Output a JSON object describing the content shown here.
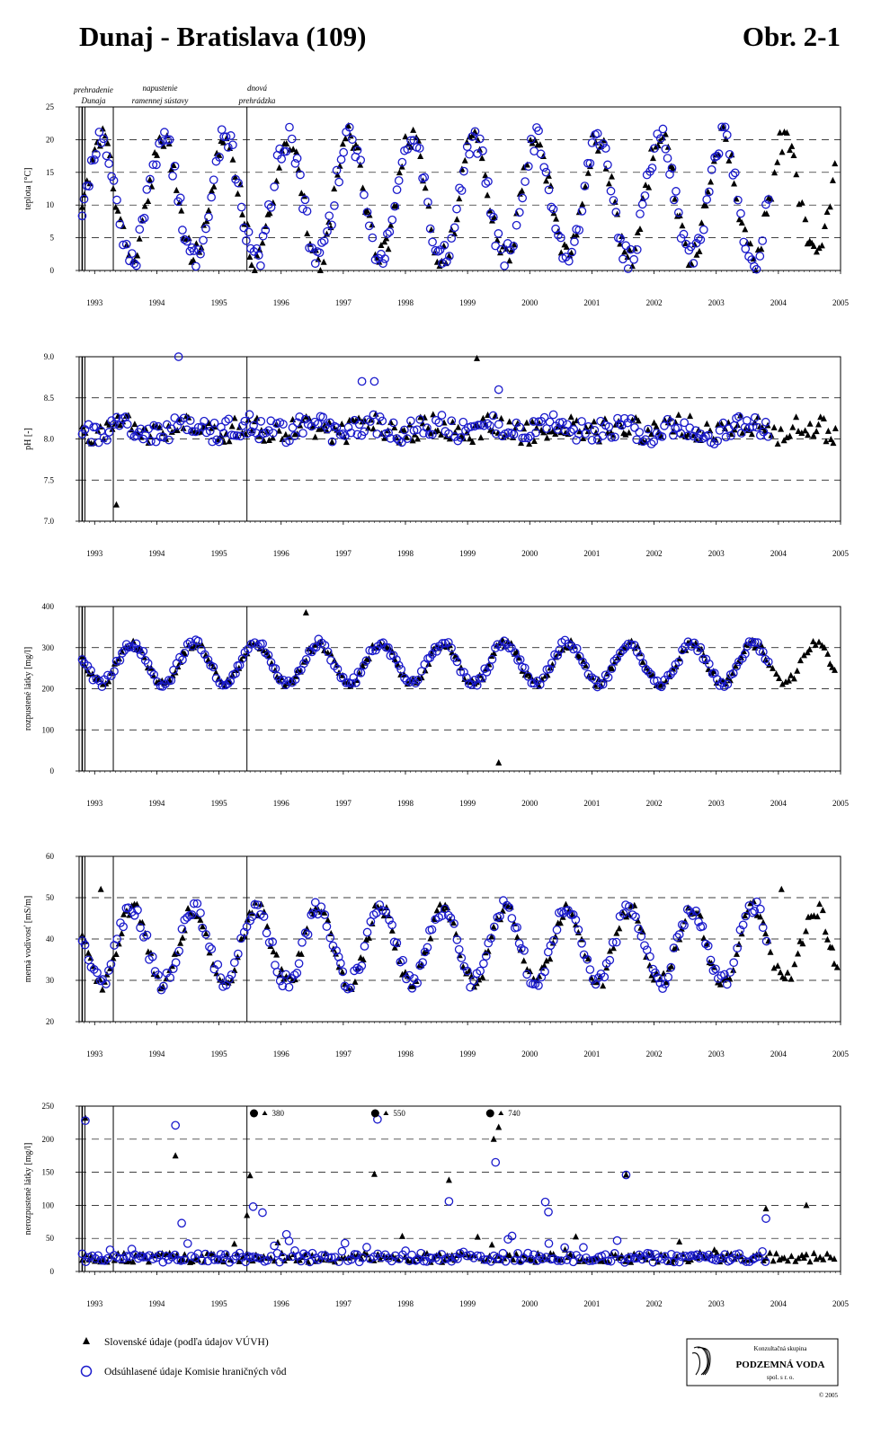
{
  "header": {
    "title": "Dunaj - Bratislava (109)",
    "figure_no": "Obr. 2-1"
  },
  "annotations": [
    {
      "line1": "prehradenie",
      "line2": "Dunaja"
    },
    {
      "line1": "napustenie",
      "line2": "ramennej sústavy"
    },
    {
      "line1": "dnová",
      "line2": "prehrádzka"
    }
  ],
  "legend": {
    "slovak": "Slovenské údaje (podľa údajov VÚVH)",
    "agreed": "Odsúhlasené údaje Komisie hraničných vôd"
  },
  "logo": {
    "line1": "Konzultačná skupina",
    "line2": "PODZEMNÁ VODA",
    "line3": "spol. s r. o.",
    "copyright": "© 2005"
  },
  "colors": {
    "slovak": "#000000",
    "agreed": "#1a1acc"
  },
  "chart_data": [
    {
      "type": "scatter",
      "ylabel": "teplota [°C]",
      "ylim": [
        0,
        25
      ],
      "yticks": [
        "0",
        "5",
        "10",
        "15",
        "20",
        "25"
      ],
      "xlim": [
        1992.75,
        2005.0
      ],
      "xticks": [
        "1993",
        "1994",
        "1995",
        "1996",
        "1997",
        "1998",
        "1999",
        "2000",
        "2001",
        "2002",
        "2003",
        "2004",
        "2005"
      ],
      "grid": "dashed horizontal",
      "event_lines": [
        1992.8,
        1993.3,
        1995.45
      ],
      "model": "seasonal",
      "mean": 11.0,
      "amp": 9.2,
      "phase": 0.6,
      "series": [
        {
          "name": "Slovenské údaje (podľa údajov VÚVH)",
          "marker": "triangle",
          "range": [
            1992.8,
            2004.95
          ],
          "step": 0.042
        },
        {
          "name": "Odsúhlasené údaje Komisie hraničných vôd",
          "marker": "circle",
          "range": [
            1992.8,
            2003.85
          ],
          "step": 0.042
        }
      ]
    },
    {
      "type": "scatter",
      "ylabel": "pH [-]",
      "ylim": [
        7.0,
        9.0
      ],
      "yticks": [
        "7.0",
        "7.5",
        "8.0",
        "8.5",
        "9.0"
      ],
      "xlim": [
        1992.75,
        2005.0
      ],
      "xticks": [
        "1993",
        "1994",
        "1995",
        "1996",
        "1997",
        "1998",
        "1999",
        "2000",
        "2001",
        "2002",
        "2003",
        "2004",
        "2005"
      ],
      "grid": "dashed horizontal",
      "event_lines": [
        1992.8,
        1993.3,
        1995.45
      ],
      "model": "flat",
      "mean": 8.12,
      "amp": 0.14,
      "phase": 0.2,
      "series": [
        {
          "name": "Slovenské údaje (podľa údajov VÚVH)",
          "marker": "triangle",
          "range": [
            1992.8,
            2004.95
          ],
          "step": 0.045
        },
        {
          "name": "Odsúhlasené údaje Komisie hraničných vôd",
          "marker": "circle",
          "range": [
            1992.8,
            2003.85
          ],
          "step": 0.045
        }
      ],
      "outliers": [
        {
          "series": 1,
          "x": 1994.35,
          "y": 9.0
        },
        {
          "series": 0,
          "x": 1999.15,
          "y": 8.98
        },
        {
          "series": 0,
          "x": 1993.35,
          "y": 7.2
        },
        {
          "series": 1,
          "x": 1997.3,
          "y": 8.7
        },
        {
          "series": 1,
          "x": 1997.5,
          "y": 8.7
        },
        {
          "series": 1,
          "x": 1999.5,
          "y": 8.6
        }
      ]
    },
    {
      "type": "scatter",
      "ylabel": "rozpustené látky [mg/l]",
      "ylim": [
        0,
        400
      ],
      "yticks": [
        "0",
        "100",
        "200",
        "300",
        "400"
      ],
      "xlim": [
        1992.75,
        2005.0
      ],
      "xticks": [
        "1993",
        "1994",
        "1995",
        "1996",
        "1997",
        "1998",
        "1999",
        "2000",
        "2001",
        "2002",
        "2003",
        "2004",
        "2005"
      ],
      "grid": "dashed horizontal",
      "event_lines": [
        1992.8,
        1993.3,
        1995.45
      ],
      "model": "seasonal",
      "mean": 262,
      "amp": 48,
      "phase": 0.1,
      "series": [
        {
          "name": "Slovenské údaje (podľa údajov VÚVH)",
          "marker": "triangle",
          "range": [
            1992.8,
            2004.95
          ],
          "step": 0.045
        },
        {
          "name": "Odsúhlasené údaje Komisie hraničných vôd",
          "marker": "circle",
          "range": [
            1992.8,
            2003.85
          ],
          "step": 0.045
        }
      ],
      "outliers": [
        {
          "series": 0,
          "x": 1996.4,
          "y": 385
        },
        {
          "series": 0,
          "x": 1999.5,
          "y": 20
        }
      ]
    },
    {
      "type": "scatter",
      "ylabel": "merná vodivosť [mS/m]",
      "ylim": [
        20,
        60
      ],
      "yticks": [
        "20",
        "30",
        "40",
        "50",
        "60"
      ],
      "xlim": [
        1992.75,
        2005.0
      ],
      "xticks": [
        "1993",
        "1994",
        "1995",
        "1996",
        "1997",
        "1998",
        "1999",
        "2000",
        "2001",
        "2002",
        "2003",
        "2004",
        "2005"
      ],
      "grid": "dashed horizontal",
      "event_lines": [
        1992.8,
        1993.3,
        1995.45
      ],
      "model": "seasonal",
      "mean": 38.5,
      "amp": 9.0,
      "phase": 0.1,
      "series": [
        {
          "name": "Slovenské údaje (podľa údajov VÚVH)",
          "marker": "triangle",
          "range": [
            1992.8,
            2004.95
          ],
          "step": 0.045
        },
        {
          "name": "Odsúhlasené údaje Komisie hraničných vôd",
          "marker": "circle",
          "range": [
            1992.8,
            2003.85
          ],
          "step": 0.045
        }
      ],
      "outliers": [
        {
          "series": 0,
          "x": 1993.1,
          "y": 52
        },
        {
          "series": 0,
          "x": 2004.05,
          "y": 52
        }
      ]
    },
    {
      "type": "scatter",
      "ylabel": "nerozpustené látky [mg/l]",
      "ylim": [
        0,
        250
      ],
      "yticks": [
        "0",
        "50",
        "100",
        "150",
        "200",
        "250"
      ],
      "xlim": [
        1992.75,
        2005.0
      ],
      "xticks": [
        "1993",
        "1994",
        "1995",
        "1996",
        "1997",
        "1998",
        "1999",
        "2000",
        "2001",
        "2002",
        "2003",
        "2004",
        "2005"
      ],
      "grid": "dashed horizontal",
      "event_lines": [
        1992.8,
        1993.3,
        1995.45
      ],
      "model": "low",
      "mean": 18,
      "amp": 14,
      "phase": 0.3,
      "series": [
        {
          "name": "Slovenské údaje (podľa údajov VÚVH)",
          "marker": "triangle",
          "range": [
            1992.8,
            2004.95
          ],
          "step": 0.05
        },
        {
          "name": "Odsúhlasené údaje Komisie hraničných vôd",
          "marker": "circle",
          "range": [
            1992.8,
            2003.85
          ],
          "step": 0.05
        }
      ],
      "outliers": [
        {
          "series": 0,
          "x": 1992.85,
          "y": 232
        },
        {
          "series": 1,
          "x": 1992.85,
          "y": 228
        },
        {
          "series": 1,
          "x": 1994.3,
          "y": 221
        },
        {
          "series": 0,
          "x": 1994.3,
          "y": 175
        },
        {
          "series": 1,
          "x": 1994.4,
          "y": 73
        },
        {
          "series": 0,
          "x": 1995.5,
          "y": 145
        },
        {
          "series": 0,
          "x": 1995.45,
          "y": 85
        },
        {
          "series": 1,
          "x": 1995.55,
          "y": 98
        },
        {
          "series": 1,
          "x": 1995.7,
          "y": 89
        },
        {
          "series": 0,
          "x": 1997.5,
          "y": 147
        },
        {
          "series": 1,
          "x": 1997.55,
          "y": 230
        },
        {
          "series": 0,
          "x": 1998.7,
          "y": 138
        },
        {
          "series": 1,
          "x": 1998.7,
          "y": 106
        },
        {
          "series": 0,
          "x": 1999.5,
          "y": 218
        },
        {
          "series": 0,
          "x": 1999.42,
          "y": 200
        },
        {
          "series": 1,
          "x": 1999.45,
          "y": 165
        },
        {
          "series": 1,
          "x": 2000.25,
          "y": 105
        },
        {
          "series": 1,
          "x": 2000.3,
          "y": 90
        },
        {
          "series": 1,
          "x": 2001.55,
          "y": 146
        },
        {
          "series": 0,
          "x": 2001.55,
          "y": 146
        },
        {
          "series": 1,
          "x": 2003.8,
          "y": 80
        },
        {
          "series": 0,
          "x": 2003.8,
          "y": 95
        },
        {
          "series": 0,
          "x": 2004.45,
          "y": 100
        }
      ],
      "offscale_labels": [
        {
          "x": 1995.65,
          "text": "380"
        },
        {
          "x": 1997.6,
          "text": "550"
        },
        {
          "x": 1999.45,
          "text": "740"
        }
      ]
    }
  ]
}
